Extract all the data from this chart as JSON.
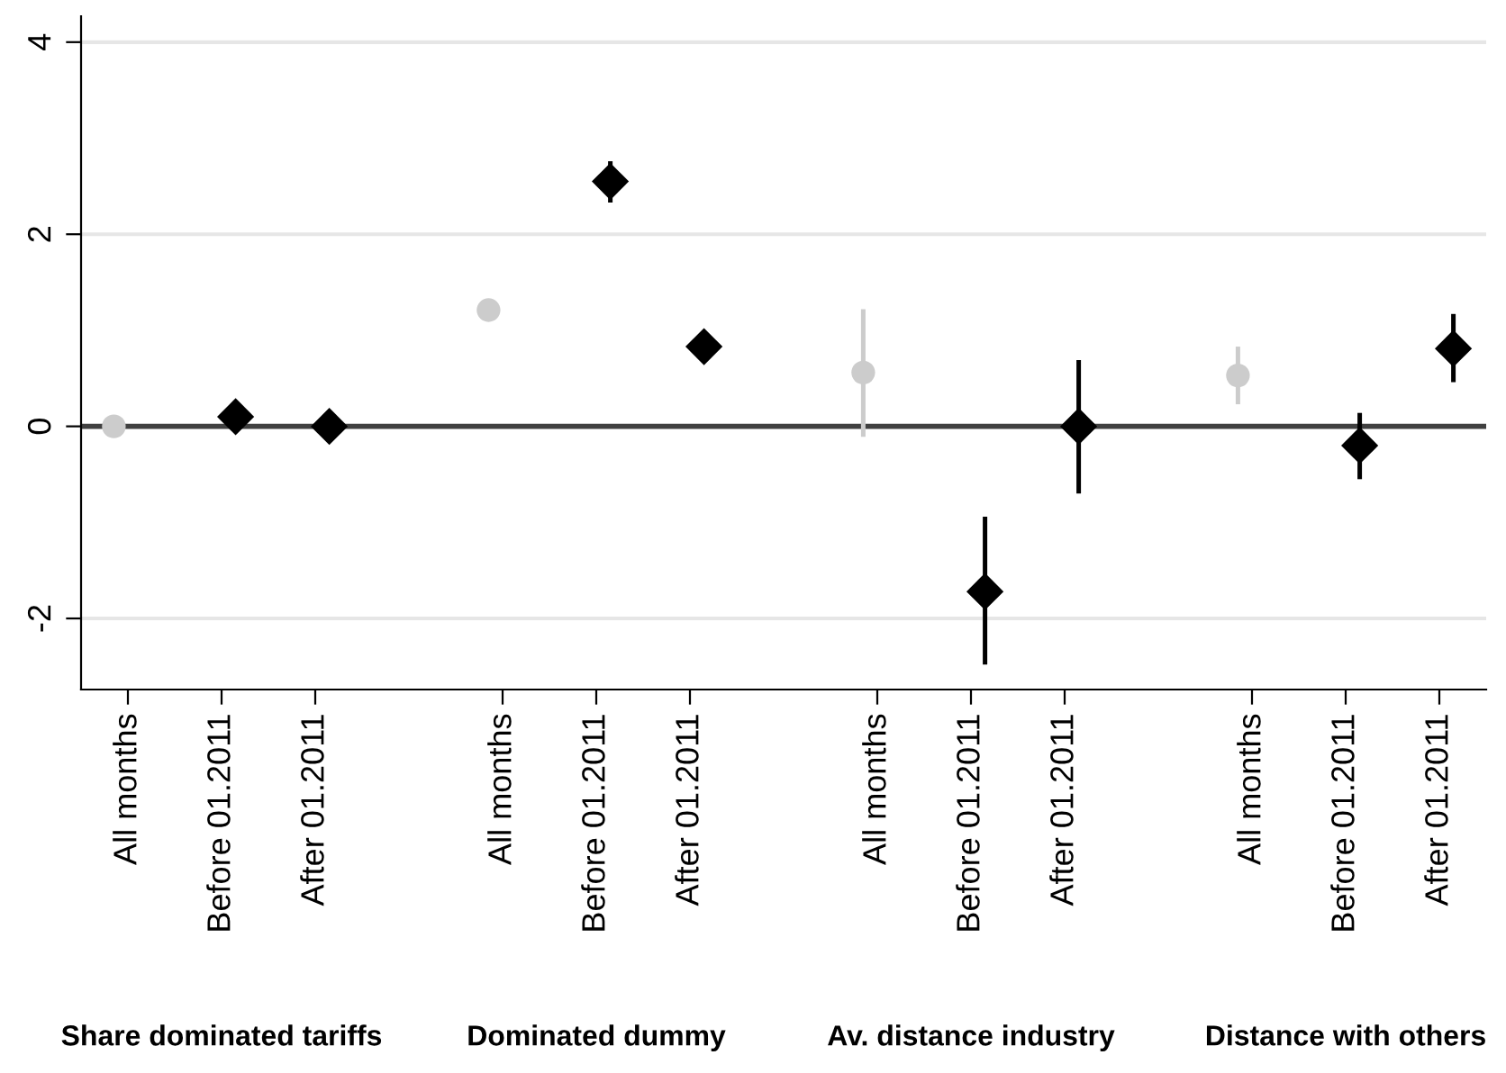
{
  "chart_data": {
    "type": "scatter",
    "categories": [
      "All months",
      "Before 01.2011",
      "After 01.2011",
      null,
      "All months",
      "Before 01.2011",
      "After 01.2011",
      null,
      "All months",
      "Before 01.2011",
      "After 01.2011",
      null,
      "All months",
      "Before 01.2011",
      "After 01.2011"
    ],
    "ylim": [
      -2.74,
      4.27
    ],
    "yticks": [
      -2,
      0,
      2,
      4
    ],
    "grid": "y",
    "ref_lines": [
      {
        "axis": "y",
        "value": 0,
        "color": "#404040"
      }
    ],
    "series": [
      {
        "color": "#cccccc",
        "marker": "circle",
        "values": [
          0.0,
          null,
          null,
          null,
          1.21,
          null,
          null,
          null,
          0.56,
          null,
          null,
          null,
          0.53,
          null,
          null
        ],
        "errors": [
          null,
          null,
          null,
          null,
          null,
          null,
          null,
          null,
          [
            -0.11,
            1.22
          ],
          null,
          null,
          null,
          [
            0.23,
            0.83
          ],
          null,
          null
        ]
      },
      {
        "color": "#000000",
        "marker": "diamond",
        "values": [
          null,
          0.1,
          0.0,
          null,
          null,
          2.55,
          0.83,
          null,
          null,
          -1.72,
          0.0,
          null,
          null,
          -0.2,
          0.81
        ],
        "errors": [
          null,
          null,
          null,
          null,
          null,
          [
            2.33,
            2.76
          ],
          null,
          null,
          null,
          [
            -2.48,
            -0.94
          ],
          [
            -0.7,
            0.69
          ],
          null,
          null,
          [
            -0.55,
            0.14
          ],
          [
            0.46,
            1.17
          ]
        ]
      }
    ],
    "annotations": [
      "Share dominated tariffs",
      "Dominated dummy",
      "Av. distance industry",
      "Distance with others"
    ]
  }
}
